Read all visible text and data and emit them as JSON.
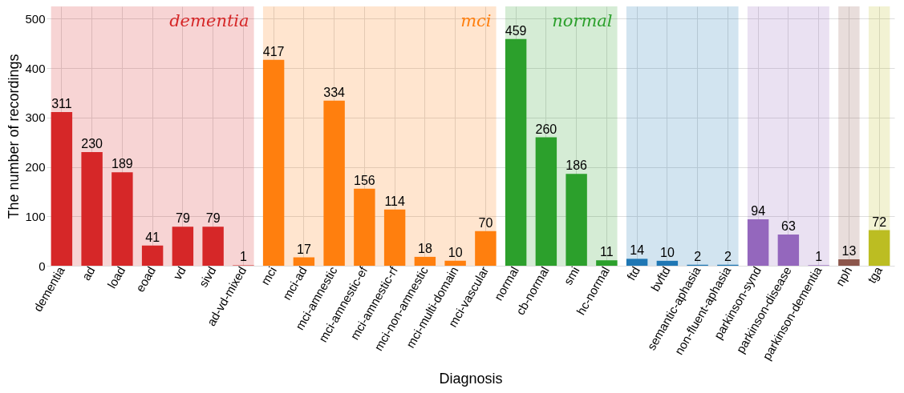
{
  "chart_data": {
    "type": "bar",
    "xlabel": "Diagnosis",
    "ylabel": "The number of recordings",
    "categories": [
      "dementia",
      "ad",
      "load",
      "eoad",
      "vd",
      "sivd",
      "ad-vd-mixed",
      "mci",
      "mci-ad",
      "mci-amnestic",
      "mci-amnestic-ef",
      "mci-amnestic-rf",
      "mci-non-amnestic",
      "mci-multi-domain",
      "mci-vascular",
      "normal",
      "cb-normal",
      "smi",
      "hc-normal",
      "ftd",
      "bvftd",
      "semantic-aphasia",
      "non-fluent-aphasia",
      "parkinson-synd",
      "parkinson-disease",
      "parkinson-dementia",
      "nph",
      "tga"
    ],
    "values": [
      311,
      230,
      189,
      41,
      79,
      79,
      1,
      417,
      17,
      334,
      156,
      114,
      18,
      10,
      70,
      459,
      260,
      186,
      11,
      14,
      10,
      2,
      2,
      94,
      63,
      1,
      13,
      72
    ],
    "colors": [
      "#d62728",
      "#d62728",
      "#d62728",
      "#d62728",
      "#d62728",
      "#d62728",
      "#d62728",
      "#ff7f0e",
      "#ff7f0e",
      "#ff7f0e",
      "#ff7f0e",
      "#ff7f0e",
      "#ff7f0e",
      "#ff7f0e",
      "#ff7f0e",
      "#2ca02c",
      "#2ca02c",
      "#2ca02c",
      "#2ca02c",
      "#1f77b4",
      "#1f77b4",
      "#1f77b4",
      "#1f77b4",
      "#9467bd",
      "#9467bd",
      "#9467bd",
      "#8c564b",
      "#bcbd22"
    ],
    "bands": [
      {
        "axis": "x",
        "from": "dementia",
        "to": "ad-vd-mixed",
        "label": "dementia",
        "color": "#d62728"
      },
      {
        "axis": "x",
        "from": "mci",
        "to": "mci-vascular",
        "label": "mci",
        "color": "#ff7f0e"
      },
      {
        "axis": "x",
        "from": "normal",
        "to": "hc-normal",
        "label": "normal",
        "color": "#2ca02c"
      },
      {
        "axis": "x",
        "from": "ftd",
        "to": "non-fluent-aphasia",
        "color": "#1f77b4"
      },
      {
        "axis": "x",
        "from": "parkinson-synd",
        "to": "parkinson-dementia",
        "color": "#9467bd"
      },
      {
        "axis": "x",
        "from": "nph",
        "to": "nph",
        "color": "#8c564b"
      },
      {
        "axis": "x",
        "from": "tga",
        "to": "tga",
        "color": "#bcbd22"
      }
    ],
    "ylim": [
      0,
      525
    ],
    "yticks": [
      0,
      100,
      200,
      300,
      400,
      500
    ],
    "grid": true,
    "data_labels": true
  }
}
